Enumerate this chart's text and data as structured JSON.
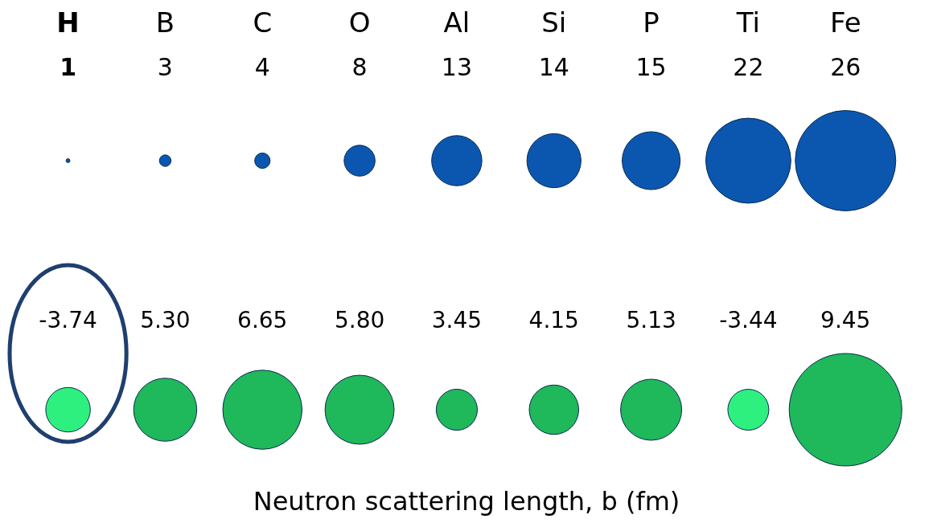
{
  "chart_data": {
    "type": "other",
    "categories": [
      "H",
      "B",
      "C",
      "O",
      "Al",
      "Si",
      "P",
      "Ti",
      "Fe"
    ],
    "xlabel": "Neutron scattering length, b (fm)",
    "series": [
      {
        "values": [
          1,
          3,
          4,
          8,
          13,
          14,
          15,
          22,
          26
        ],
        "color": "#0b57b0"
      },
      {
        "values": [
          -3.74,
          5.3,
          6.65,
          5.8,
          3.45,
          4.15,
          5.13,
          -3.44,
          9.45
        ],
        "colors": [
          "#2ef07f",
          "#1fb85a",
          "#1fb85a",
          "#1fb85a",
          "#1fb85a",
          "#1fb85a",
          "#1fb85a",
          "#2ef07f",
          "#1fb85a"
        ],
        "value_labels": [
          "-3.74",
          "5.30",
          "6.65",
          "5.80",
          "3.45",
          "4.15",
          "5.13",
          "-3.44",
          "9.45"
        ]
      }
    ],
    "data_labels": true
  }
}
